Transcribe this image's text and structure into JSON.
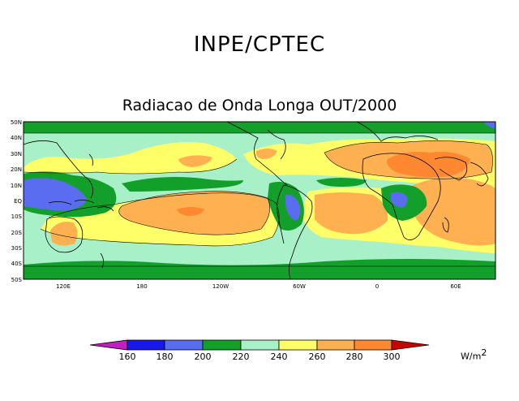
{
  "header": {
    "title": "INPE/CPTEC",
    "subtitle": "Radiacao de Onda Longa OUT/2000"
  },
  "map": {
    "lat_labels": [
      "50N",
      "40N",
      "30N",
      "20N",
      "10N",
      "EQ",
      "10S",
      "20S",
      "30S",
      "40S",
      "50S"
    ],
    "lon_labels": [
      "120E",
      "180",
      "120W",
      "60W",
      "0",
      "60E"
    ]
  },
  "legend": {
    "ticks": [
      "160",
      "180",
      "200",
      "220",
      "240",
      "260",
      "280",
      "300"
    ],
    "unit_base": "W/m",
    "unit_exp": "2",
    "colors": {
      "lt160": "#c020c0",
      "160_180": "#1818e8",
      "180_200": "#5a6cf0",
      "200_220": "#12a02a",
      "220_240": "#a8f0c8",
      "240_260": "#ffff68",
      "260_280": "#ffb050",
      "280_300": "#ff8830",
      "gt300": "#c80000"
    }
  }
}
